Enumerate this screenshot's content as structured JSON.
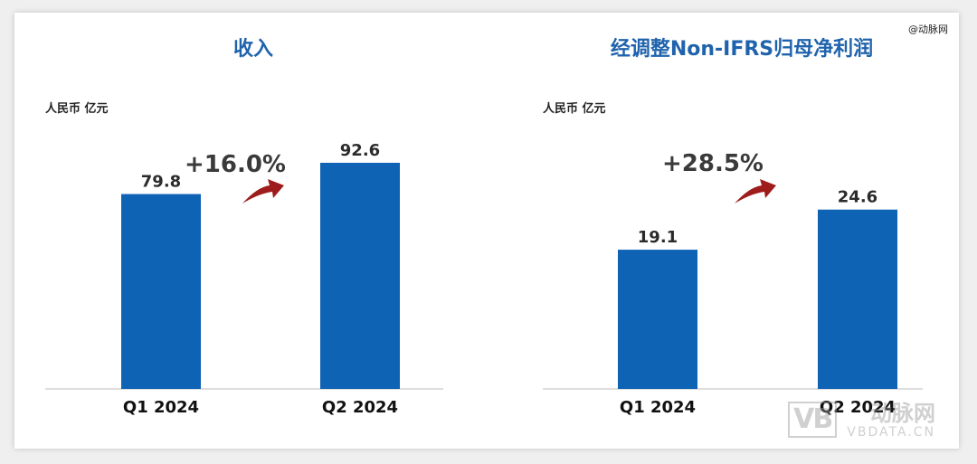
{
  "source_mark": "@动脉网",
  "colors": {
    "bar": "#0f63b4",
    "title": "#1f63ad",
    "arrow": "#9e1c1c"
  },
  "watermark": {
    "logo": "VB",
    "cn": "动脉网",
    "en": "VBDATA.CN"
  },
  "chart_data": [
    {
      "type": "bar",
      "title": "收入",
      "unit": "人民币 亿元",
      "categories": [
        "Q1 2024",
        "Q2 2024"
      ],
      "values": [
        79.8,
        92.6
      ],
      "value_labels": [
        "79.8",
        "92.6"
      ],
      "growth": "+16.0%",
      "ylim": [
        0,
        100
      ],
      "grid": false
    },
    {
      "type": "bar",
      "title": "经调整Non-IFRS归母净利润",
      "unit": "人民币 亿元",
      "categories": [
        "Q1 2024",
        "Q2 2024"
      ],
      "values": [
        19.1,
        24.6
      ],
      "value_labels": [
        "19.1",
        "24.6"
      ],
      "growth": "+28.5%",
      "ylim": [
        0,
        33.5
      ],
      "grid": false
    }
  ]
}
